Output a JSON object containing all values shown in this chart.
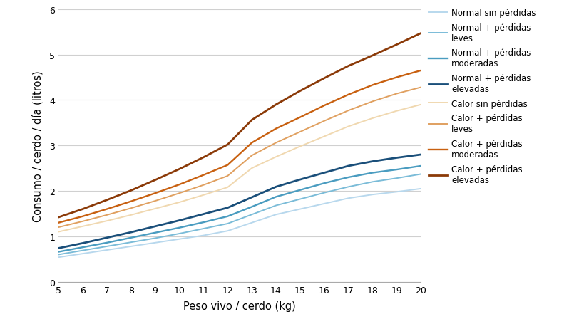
{
  "x": [
    5,
    6,
    7,
    8,
    9,
    10,
    11,
    12,
    13,
    14,
    15,
    16,
    17,
    18,
    19,
    20
  ],
  "series": [
    {
      "label": "Normal sin pérdidas",
      "color": "#b8d8ed",
      "linewidth": 1.4,
      "y": [
        0.54,
        0.62,
        0.7,
        0.78,
        0.86,
        0.94,
        1.02,
        1.12,
        1.3,
        1.48,
        1.6,
        1.72,
        1.84,
        1.92,
        1.98,
        2.05
      ]
    },
    {
      "label": "Normal + pérdidas\nleves",
      "color": "#7bbcd8",
      "linewidth": 1.4,
      "y": [
        0.6,
        0.69,
        0.78,
        0.87,
        0.96,
        1.06,
        1.17,
        1.28,
        1.48,
        1.68,
        1.82,
        1.96,
        2.09,
        2.2,
        2.28,
        2.37
      ]
    },
    {
      "label": "Normal + pérdidas\nmoderadas",
      "color": "#4a9cc0",
      "linewidth": 1.7,
      "y": [
        0.66,
        0.76,
        0.86,
        0.97,
        1.08,
        1.19,
        1.31,
        1.44,
        1.65,
        1.87,
        2.02,
        2.17,
        2.3,
        2.4,
        2.47,
        2.55
      ]
    },
    {
      "label": "Normal + pérdidas\nelevadas",
      "color": "#1a4f7a",
      "linewidth": 2.0,
      "y": [
        0.74,
        0.85,
        0.97,
        1.09,
        1.22,
        1.35,
        1.49,
        1.63,
        1.86,
        2.09,
        2.25,
        2.4,
        2.55,
        2.65,
        2.73,
        2.8
      ]
    },
    {
      "label": "Calor sin pérdidas",
      "color": "#f0d8b0",
      "linewidth": 1.4,
      "y": [
        1.1,
        1.22,
        1.34,
        1.47,
        1.61,
        1.75,
        1.91,
        2.08,
        2.5,
        2.75,
        2.98,
        3.2,
        3.42,
        3.6,
        3.76,
        3.9
      ]
    },
    {
      "label": "Calor + pérdidas\nleves",
      "color": "#e0a060",
      "linewidth": 1.4,
      "y": [
        1.2,
        1.33,
        1.47,
        1.62,
        1.78,
        1.95,
        2.13,
        2.33,
        2.78,
        3.06,
        3.3,
        3.54,
        3.77,
        3.97,
        4.14,
        4.28
      ]
    },
    {
      "label": "Calor + pérdidas\nmoderadas",
      "color": "#c86010",
      "linewidth": 1.7,
      "y": [
        1.3,
        1.44,
        1.6,
        1.77,
        1.95,
        2.14,
        2.35,
        2.57,
        3.06,
        3.37,
        3.62,
        3.88,
        4.12,
        4.33,
        4.5,
        4.65
      ]
    },
    {
      "label": "Calor + pérdidas\nelevadas",
      "color": "#8b3a08",
      "linewidth": 2.0,
      "y": [
        1.42,
        1.6,
        1.8,
        2.01,
        2.24,
        2.48,
        2.74,
        3.02,
        3.56,
        3.9,
        4.2,
        4.48,
        4.75,
        4.98,
        5.22,
        5.47
      ]
    }
  ],
  "xlabel": "Peso vivo / cerdo (kg)",
  "ylabel": "Consumo / cerdo / día (litros)",
  "xlim": [
    5,
    20
  ],
  "ylim": [
    0,
    6
  ],
  "xticks": [
    5,
    6,
    7,
    8,
    9,
    10,
    11,
    12,
    13,
    14,
    15,
    16,
    17,
    18,
    19,
    20
  ],
  "yticks": [
    0,
    1,
    2,
    3,
    4,
    5,
    6
  ],
  "background_color": "#ffffff",
  "grid_color": "#d0d0d0",
  "legend_fontsize": 8.5,
  "axis_fontsize": 10.5,
  "tick_fontsize": 9
}
